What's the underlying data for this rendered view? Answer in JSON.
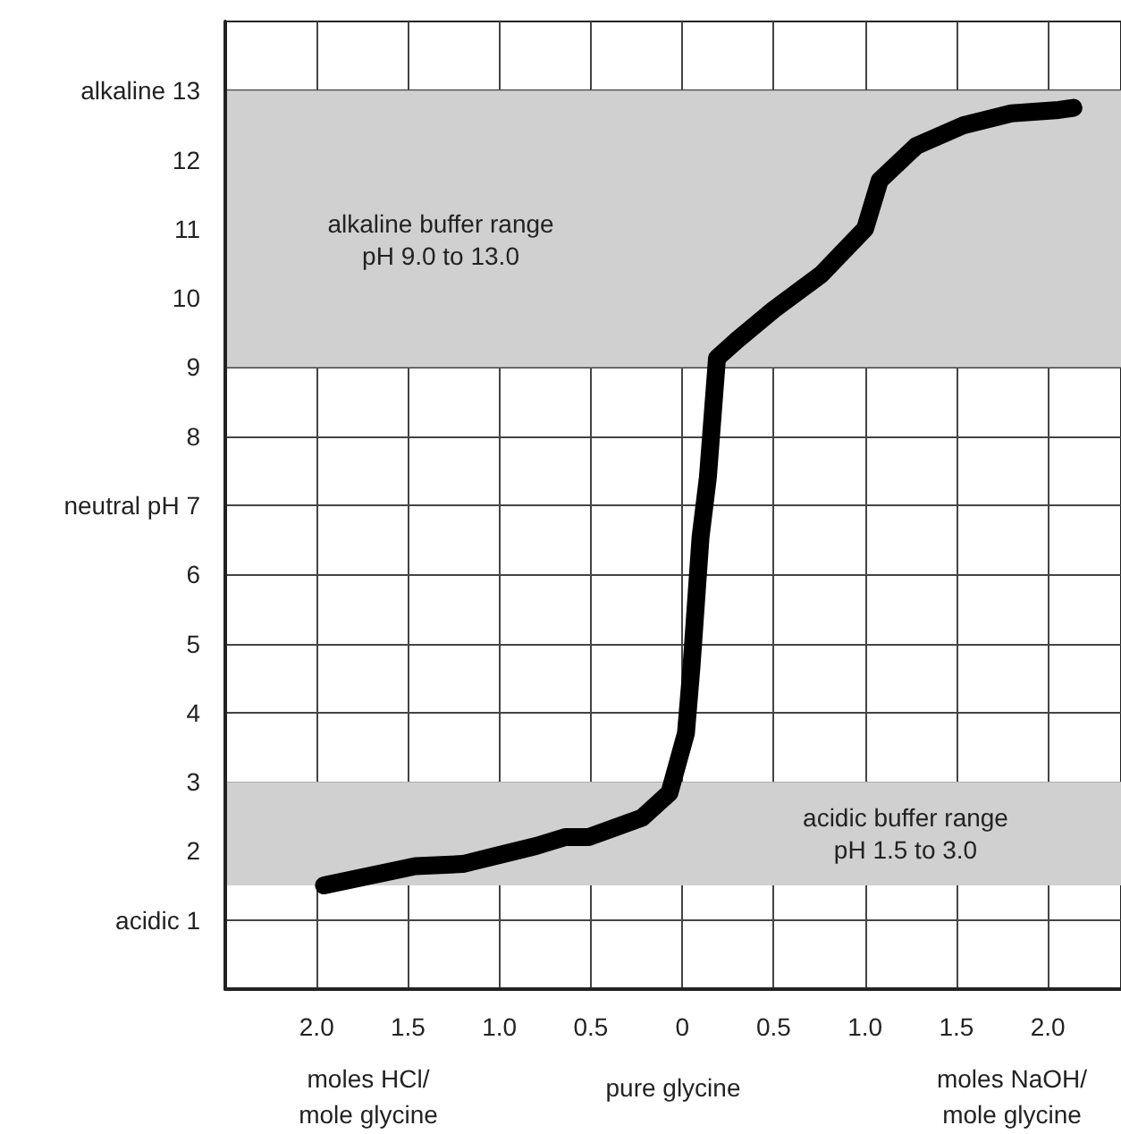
{
  "chart_data": {
    "type": "line",
    "xlabel": "pure glycine",
    "annotations": [
      "moles HCl/\nmole glycine",
      "moles NaOH/\nmole glycine"
    ],
    "series": [
      {
        "color": "#000000",
        "x": [
          -1.96,
          -1.46,
          -1.2,
          -1.0,
          -0.8,
          -0.64,
          -0.51,
          -0.22,
          -0.07,
          0.02,
          0.05,
          0.1,
          0.14,
          0.19,
          0.3,
          0.5,
          0.76,
          1.0,
          1.08,
          1.28,
          1.54,
          1.8,
          2.06,
          2.14
        ],
        "values": [
          1.5,
          1.78,
          1.81,
          1.94,
          2.07,
          2.2,
          2.2,
          2.48,
          2.84,
          3.7,
          4.65,
          6.54,
          7.4,
          9.13,
          9.39,
          9.83,
          10.34,
          11.0,
          11.7,
          12.2,
          12.5,
          12.67,
          12.72,
          12.75
        ]
      }
    ],
    "xlim": [
      -2.5,
      2.4
    ],
    "xticks": [
      {
        "value": -2,
        "label": "2.0"
      },
      {
        "value": -1.5,
        "label": "1.5"
      },
      {
        "value": -1,
        "label": "1.0"
      },
      {
        "value": -0.5,
        "label": "0.5"
      },
      0,
      {
        "value": 0.5,
        "label": "0.5"
      },
      {
        "value": 1,
        "label": "1.0"
      },
      {
        "value": 1.5,
        "label": "1.5"
      },
      {
        "value": 2,
        "label": "2.0"
      }
    ],
    "ylim": [
      0,
      14
    ],
    "yticks": [
      {
        "value": 1,
        "label": "acidic 1"
      },
      2,
      3,
      4,
      5,
      6,
      {
        "value": 7,
        "label": "neutral pH 7"
      },
      8,
      9,
      10,
      11,
      12,
      {
        "value": 13,
        "label": "alkaline 13"
      }
    ],
    "bands": [
      {
        "axis": "y",
        "from": 9,
        "to": 13,
        "label": "alkaline buffer range\npH 9.0 to 13.0",
        "color": "#d0d0d0"
      },
      {
        "axis": "y",
        "from": 1.5,
        "to": 3,
        "label": "acidic buffer range\npH 1.5 to 3.0",
        "color": "#d0d0d0"
      }
    ],
    "grid": true,
    "line_style": "solid"
  }
}
